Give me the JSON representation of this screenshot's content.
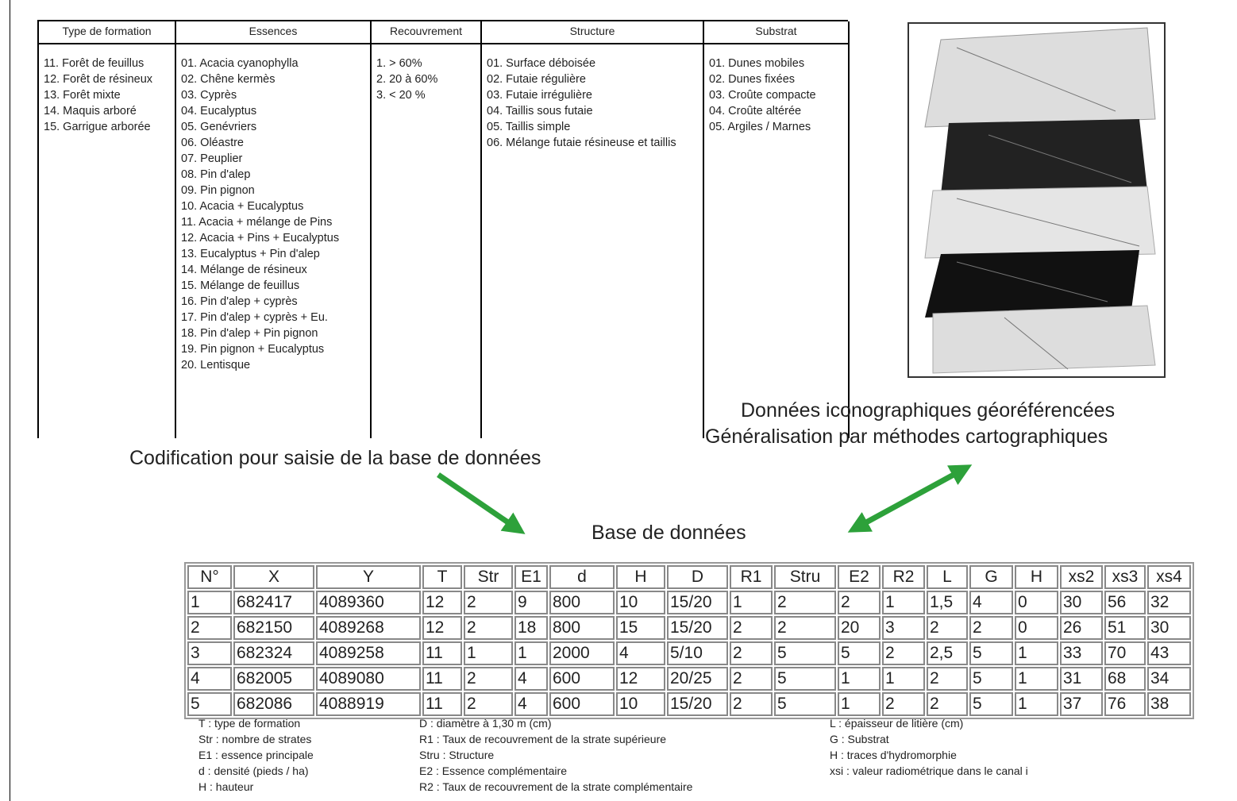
{
  "coding_table": {
    "headers": [
      "Type de formation",
      "Essences",
      "Recouvrement",
      "Structure",
      "Substrat"
    ],
    "columns": [
      [
        "11. Forêt de feuillus",
        "12. Forêt de résineux",
        "13. Forêt mixte",
        "14. Maquis arboré",
        "15. Garrigue arborée"
      ],
      [
        "01. Acacia cyanophylla",
        "02. Chêne kermès",
        "03. Cyprès",
        "04. Eucalyptus",
        "05. Genévriers",
        "06. Oléastre",
        "07. Peuplier",
        "08. Pin d'alep",
        "09. Pin pignon",
        "10. Acacia + Eucalyptus",
        "11. Acacia + mélange de Pins",
        "12. Acacia + Pins + Eucalyptus",
        "13. Eucalyptus + Pin d'alep",
        "14. Mélange de résineux",
        "15. Mélange de feuillus",
        "16. Pin d'alep + cyprès",
        "17. Pin d'alep + cyprès + Eu.",
        "18. Pin d'alep + Pin pignon",
        "19. Pin pignon + Eucalyptus",
        "20. Lentisque"
      ],
      [
        "1. > 60%",
        "2. 20 à 60%",
        "3. < 20 %"
      ],
      [
        "01. Surface déboisée",
        "02. Futaie régulière",
        "03. Futaie irrégulière",
        "04. Taillis sous futaie",
        "05. Taillis simple",
        "06. Mélange futaie résineuse et taillis"
      ],
      [
        "01. Dunes mobiles",
        "02. Dunes fixées",
        "03. Croûte compacte",
        "04. Croûte altérée",
        "05. Argiles / Marnes"
      ]
    ]
  },
  "captions": {
    "imagery_line1": "Données iconographiques géoréférencées",
    "imagery_line2": "Généralisation par méthodes cartographiques",
    "coding": "Codification pour saisie de la base de données",
    "database": "Base de données"
  },
  "database_table": {
    "headers": [
      "N°",
      "X",
      "Y",
      "T",
      "Str",
      "E1",
      "d",
      "H",
      "D",
      "R1",
      "Stru",
      "E2",
      "R2",
      "L",
      "G",
      "H",
      "xs2",
      "xs3",
      "xs4"
    ],
    "rows": [
      [
        "1",
        "682417",
        "4089360",
        "12",
        "2",
        "9",
        "800",
        "10",
        "15/20",
        "1",
        "2",
        "2",
        "1",
        "1,5",
        "4",
        "0",
        "30",
        "56",
        "32"
      ],
      [
        "2",
        "682150",
        "4089268",
        "12",
        "2",
        "18",
        "800",
        "15",
        "15/20",
        "2",
        "2",
        "20",
        "3",
        "2",
        "2",
        "0",
        "26",
        "51",
        "30"
      ],
      [
        "3",
        "682324",
        "4089258",
        "11",
        "1",
        "1",
        "2000",
        "4",
        "5/10",
        "2",
        "5",
        "5",
        "2",
        "2,5",
        "5",
        "1",
        "33",
        "70",
        "43"
      ],
      [
        "4",
        "682005",
        "4089080",
        "11",
        "2",
        "4",
        "600",
        "12",
        "20/25",
        "2",
        "5",
        "1",
        "1",
        "2",
        "5",
        "1",
        "31",
        "68",
        "34"
      ],
      [
        "5",
        "682086",
        "4088919",
        "11",
        "2",
        "4",
        "600",
        "10",
        "15/20",
        "2",
        "5",
        "1",
        "2",
        "2",
        "5",
        "1",
        "37",
        "76",
        "38"
      ]
    ]
  },
  "legend": [
    [
      "T : type de formation",
      "Str : nombre de strates",
      "E1 : essence principale",
      "d : densité (pieds / ha)",
      "H : hauteur"
    ],
    [
      "D : diamètre à 1,30 m (cm)",
      "R1 : Taux de recouvrement de la strate supérieure",
      "Stru : Structure",
      "E2 : Essence complémentaire",
      "R2 : Taux de recouvrement de la strate complémentaire"
    ],
    [
      "L : épaisseur de litière (cm)",
      "G : Substrat",
      "H : traces d'hydromorphie",
      "xsi : valeur radiométrique dans le canal i"
    ]
  ]
}
